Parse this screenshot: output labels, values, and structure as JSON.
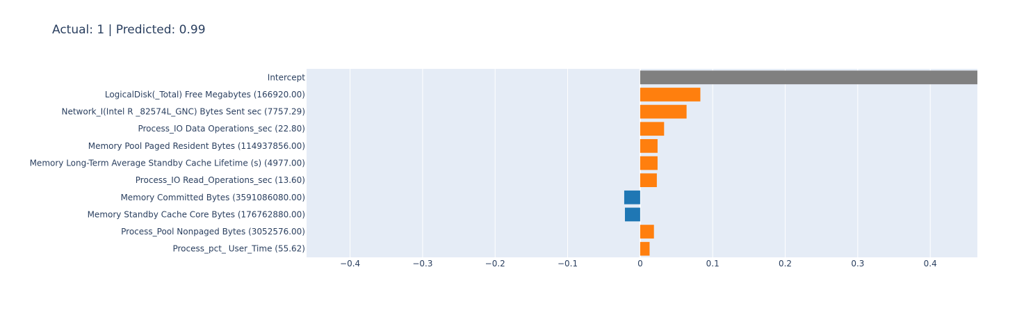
{
  "title": "Actual: 1 | Predicted: 0.99",
  "colors": {
    "plot_background": "#e5ecf6",
    "grid": "#ffffff",
    "positive": "#ff7f0e",
    "negative": "#1f77b4",
    "intercept": "#808080",
    "text": "#2a3f5f"
  },
  "chart_data": {
    "type": "bar",
    "orientation": "horizontal",
    "title": "Actual: 1 | Predicted: 0.99",
    "xlabel": "",
    "ylabel": "",
    "xlim": [
      -0.46,
      0.465
    ],
    "grid": true,
    "xticks": [
      -0.4,
      -0.3,
      -0.2,
      -0.1,
      0,
      0.1,
      0.2,
      0.3,
      0.4
    ],
    "xtick_labels": [
      "−0.4",
      "−0.3",
      "−0.2",
      "−0.1",
      "0",
      "0.1",
      "0.2",
      "0.3",
      "0.4"
    ],
    "categories": [
      "Intercept",
      "LogicalDisk(_Total) Free Megabytes (166920.00)",
      "Network_I(Intel R _82574L_GNC) Bytes Sent sec (7757.29)",
      "Process_IO Data Operations_sec (22.80)",
      "Memory Pool Paged Resident Bytes (114937856.00)",
      "Memory Long-Term Average Standby Cache Lifetime (s) (4977.00)",
      "Process_IO Read_Operations_sec (13.60)",
      "Memory Committed Bytes (3591086080.00)",
      "Memory Standby Cache Core Bytes (176762880.00)",
      "Process_Pool Nonpaged Bytes (3052576.00)",
      "Process_pct_ User_Time (55.62)"
    ],
    "values": [
      0.47,
      0.083,
      0.064,
      0.033,
      0.024,
      0.024,
      0.023,
      -0.022,
      -0.021,
      0.019,
      0.013
    ]
  }
}
